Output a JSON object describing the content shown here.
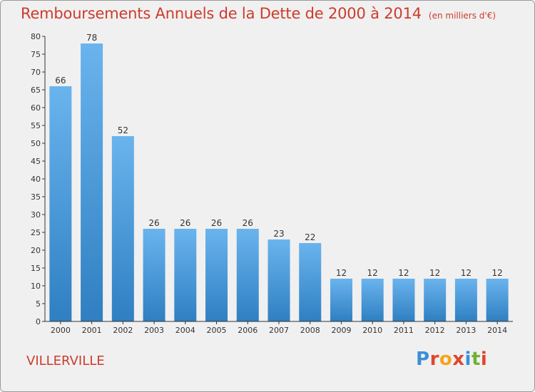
{
  "header": {
    "title": "Remboursements Annuels de la Dette de 2000 à 2014",
    "subtitle": "(en milliers d'€)"
  },
  "footer": {
    "commune": "VILLERVILLE",
    "logo_text": "Proxiti",
    "logo_colors": [
      "#3a8fd6",
      "#e0462c",
      "#f2a51e",
      "#e0462c",
      "#3a8fd6",
      "#6fb233",
      "#e0462c"
    ]
  },
  "colors": {
    "title": "#cc3b2c",
    "bar_top": "#6ab4ee",
    "bar_bottom": "#2f7fc1",
    "axis": "#333333",
    "grid": "#dcdcdc",
    "background": "#f0f0f0"
  },
  "chart_data": {
    "type": "bar",
    "categories": [
      "2000",
      "2001",
      "2002",
      "2003",
      "2004",
      "2005",
      "2006",
      "2007",
      "2008",
      "2009",
      "2010",
      "2011",
      "2012",
      "2013",
      "2014"
    ],
    "values": [
      66,
      78,
      52,
      26,
      26,
      26,
      26,
      23,
      22,
      12,
      12,
      12,
      12,
      12,
      12
    ],
    "title": "Remboursements Annuels de la Dette de 2000 à 2014",
    "xlabel": "",
    "ylabel": "",
    "ylim": [
      0,
      80
    ],
    "yticks": [
      0,
      5,
      10,
      15,
      20,
      25,
      30,
      35,
      40,
      45,
      50,
      55,
      60,
      65,
      70,
      75,
      80
    ],
    "grid": false,
    "data_labels": true
  }
}
